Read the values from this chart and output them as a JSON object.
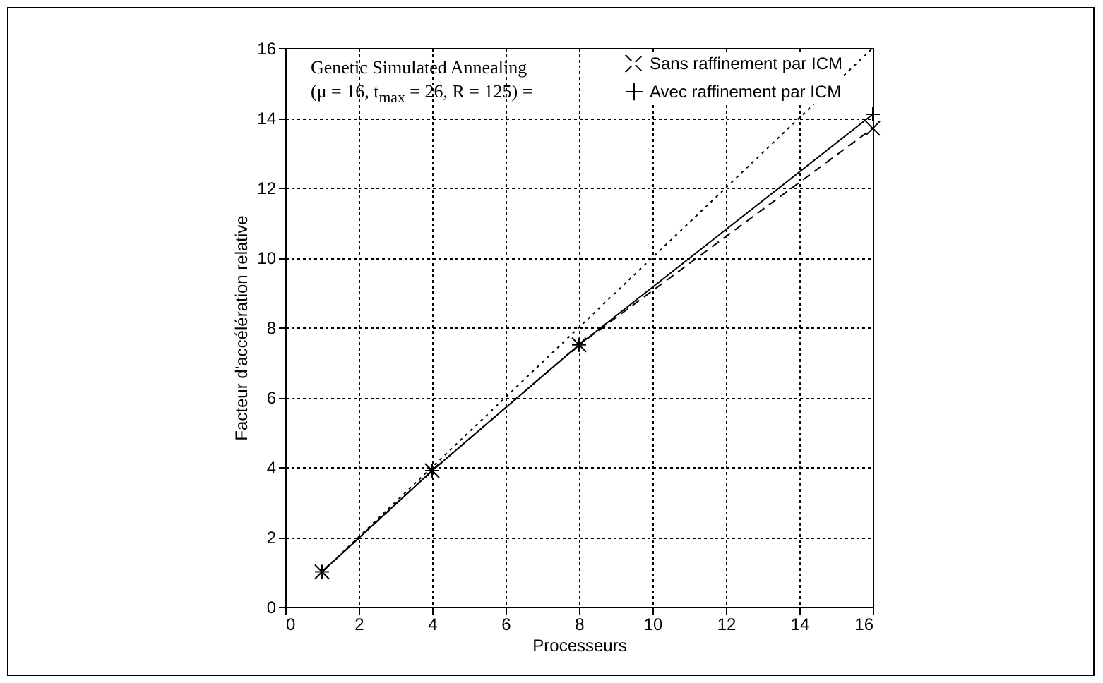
{
  "chart_data": {
    "type": "line",
    "xlabel": "Processeurs",
    "ylabel": "Facteur d'accélération relative",
    "legend_title": "Genetic Simulated Annealing\n(μ = 16, t$_{max}$ = 26, R = 125) =",
    "xlim": [
      0,
      16
    ],
    "ylim": [
      0,
      16
    ],
    "xticks": [
      0,
      2,
      4,
      6,
      8,
      10,
      12,
      14,
      16
    ],
    "yticks": [
      0,
      2,
      4,
      6,
      8,
      10,
      12,
      14,
      16
    ],
    "grid": true,
    "legend": "top",
    "series": [
      {
        "name": "Sans raffinement par ICM",
        "color": "#000000",
        "x": [
          1,
          4,
          8,
          16
        ],
        "values": [
          1,
          3.9,
          7.5,
          13.7
        ],
        "line_style": "dashed",
        "marker": "x"
      },
      {
        "name": "Avec raffinement par ICM",
        "color": "#000000",
        "x": [
          1,
          4,
          8,
          16
        ],
        "values": [
          1,
          3.9,
          7.5,
          14.1
        ],
        "line_style": "solid",
        "marker": "cross"
      },
      {
        "color": "#000000",
        "x": [
          1,
          16
        ],
        "values": [
          1,
          16
        ],
        "line_style": "dotted",
        "marker": "none"
      }
    ]
  }
}
